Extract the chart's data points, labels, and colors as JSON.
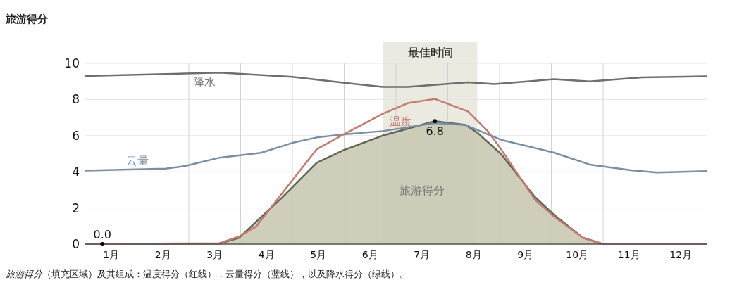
{
  "chart_data": {
    "type": "line",
    "title": "旅游得分",
    "annotations": [
      "*旅游得分*（填充区域）及其组成：温度得分（红线），云量得分（蓝线），以及降水得分（绿线）。",
      {
        "text": "0.0",
        "x": 0.33,
        "y": 0
      },
      {
        "text": "6.8",
        "x": 6.75,
        "y": 6.8
      }
    ],
    "series": [
      {
        "name": "降水",
        "color": "#6e6e6e",
        "x": [
          0,
          2.59,
          4.0,
          4.95,
          5.74,
          6.23,
          7.39,
          7.9,
          9.05,
          9.74,
          10.75,
          12
        ],
        "values": [
          9.3,
          9.48,
          9.25,
          8.94,
          8.7,
          8.7,
          8.95,
          8.85,
          9.12,
          9.0,
          9.22,
          9.28
        ]
      },
      {
        "name": "云量",
        "color": "#7a8ea3",
        "x": [
          0,
          1.55,
          1.93,
          2.59,
          3.39,
          4.0,
          4.47,
          4.95,
          5.74,
          6.75,
          7.34,
          8.03,
          9.05,
          9.74,
          10.54,
          11.04,
          12
        ],
        "values": [
          4.07,
          4.17,
          4.32,
          4.78,
          5.05,
          5.6,
          5.9,
          6.06,
          6.25,
          6.69,
          6.59,
          5.77,
          5.06,
          4.4,
          4.09,
          3.96,
          4.04
        ]
      },
      {
        "name": "温度",
        "color": "#c47a6c",
        "x": [
          0,
          2.59,
          2.97,
          3.3,
          3.81,
          4.47,
          4.99,
          5.74,
          6.23,
          6.75,
          7.39,
          7.76,
          8.03,
          8.68,
          9.05,
          9.61,
          10.0,
          12
        ],
        "values": [
          0,
          0.05,
          0.42,
          0.97,
          2.84,
          5.25,
          6.07,
          7.2,
          7.8,
          8.03,
          7.34,
          6.29,
          5.24,
          2.47,
          1.53,
          0.35,
          0,
          0
        ]
      },
      {
        "name": "旅游得分",
        "type": "area",
        "color": "#5e6655",
        "x": [
          0,
          2.59,
          2.97,
          3.81,
          4.47,
          4.99,
          5.74,
          6.75,
          7.34,
          7.57,
          8.03,
          8.68,
          9.05,
          9.61,
          10.0,
          12
        ],
        "values": [
          0,
          0.03,
          0.35,
          2.6,
          4.5,
          5.2,
          6.0,
          6.8,
          6.6,
          6.17,
          4.98,
          2.62,
          1.63,
          0.35,
          0,
          0
        ]
      }
    ],
    "xlim": [
      0,
      12
    ],
    "xticks": [
      {
        "value": 0.5,
        "label": "1月"
      },
      {
        "value": 1,
        "label": null
      },
      {
        "value": 1.5,
        "label": "2月"
      },
      {
        "value": 2,
        "label": null
      },
      {
        "value": 2.5,
        "label": "3月"
      },
      {
        "value": 3,
        "label": null
      },
      {
        "value": 3.5,
        "label": "4月"
      },
      {
        "value": 4,
        "label": null
      },
      {
        "value": 4.5,
        "label": "5月"
      },
      {
        "value": 5,
        "label": null
      },
      {
        "value": 5.5,
        "label": "6月"
      },
      {
        "value": 6,
        "label": null
      },
      {
        "value": 6.5,
        "label": "7月"
      },
      {
        "value": 7,
        "label": null
      },
      {
        "value": 7.5,
        "label": "8月"
      },
      {
        "value": 8,
        "label": null
      },
      {
        "value": 8.5,
        "label": "9月"
      },
      {
        "value": 9,
        "label": null
      },
      {
        "value": 9.5,
        "label": "10月"
      },
      {
        "value": 10,
        "label": null
      },
      {
        "value": 10.5,
        "label": "11月"
      },
      {
        "value": 11,
        "label": null
      },
      {
        "value": 11.5,
        "label": "12月"
      }
    ],
    "ylim": [
      0,
      10
    ],
    "yticks": [
      0,
      2,
      4,
      6,
      8,
      10
    ],
    "bands": [
      {
        "axis": "x",
        "from": 5.75,
        "to": 7.57,
        "label": "最佳时间",
        "color": "#dcdccd"
      }
    ],
    "grid": true,
    "line_style": "solid"
  }
}
